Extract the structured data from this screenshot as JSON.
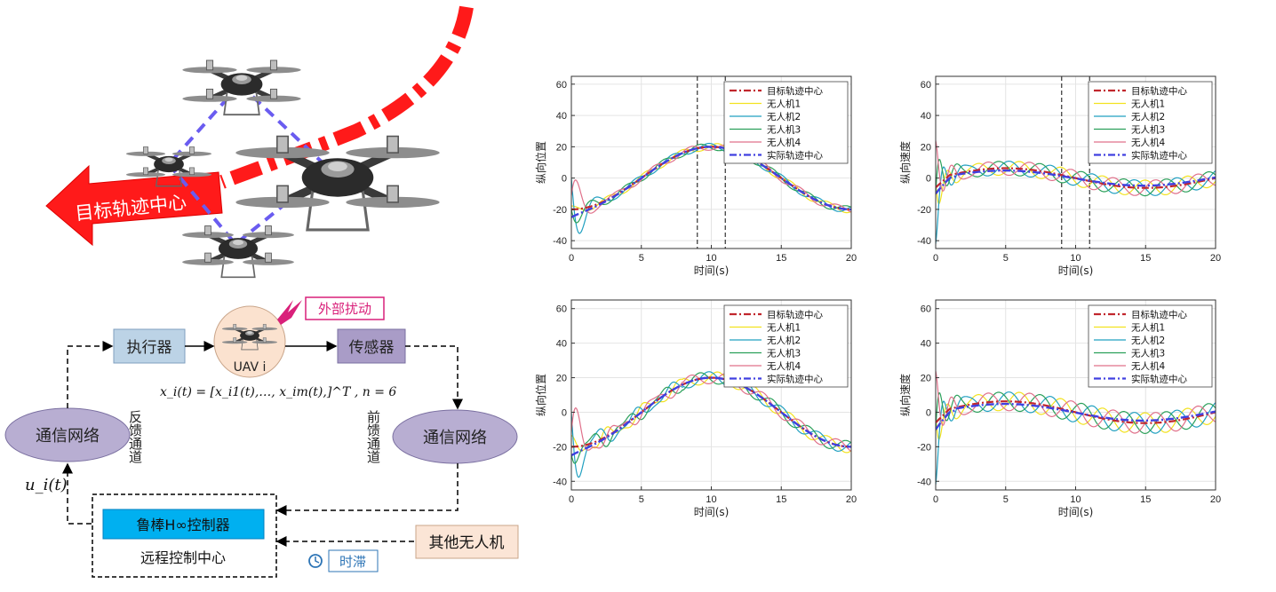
{
  "illustration": {
    "target_arrow_label": "目标轨迹中心",
    "disturbance_label": "外部扰动",
    "actuator_label": "执行器",
    "sensor_label": "传感器",
    "uav_label": "UAV i",
    "state_formula": "x_i(t) = [x_i1(t),…, x_im(t),]^T , n = 6",
    "network_left_label": "通信网络",
    "network_right_label": "通信网络",
    "feedback_channel": "反馈通道",
    "forward_channel": "前馈通道",
    "control_signal": "u_i(t)",
    "controller_label": "鲁棒H∞控制器",
    "remote_center_label": "远程控制中心",
    "other_uav_label": "其他无人机",
    "delay_label": "时滞"
  },
  "colors": {
    "target": "#c1272d",
    "uav1": "#f2e21f",
    "uav2": "#21a0c0",
    "uav3": "#2ba05a",
    "uav4": "#e0708a",
    "actual": "#4040e0",
    "arrow_red": "#ff1a1a",
    "actuator_fill": "#bcd3e6",
    "sensor_fill": "#a99cc7",
    "network_fill": "#b8aed2",
    "controller_fill": "#00b0f0",
    "other_fill": "#fbe5d6"
  },
  "chart_data": [
    {
      "type": "line",
      "ylabel": "纵向位置",
      "xlabel": "时间(s)",
      "xlim": [
        0,
        20
      ],
      "ylim": [
        -45,
        65
      ],
      "xticks": [
        0,
        5,
        10,
        15,
        20
      ],
      "yticks": [
        60,
        40,
        20,
        0,
        -20,
        -40
      ],
      "grid": true,
      "legend_position": "top-right",
      "vlines": [
        9,
        11
      ],
      "legend": [
        "目标轨迹中心",
        "无人机1",
        "无人机2",
        "无人机3",
        "无人机4",
        "实际轨迹中心"
      ],
      "kind": "position",
      "variant": 1
    },
    {
      "type": "line",
      "ylabel": "纵向速度",
      "xlabel": "时间(s)",
      "xlim": [
        0,
        20
      ],
      "ylim": [
        -45,
        65
      ],
      "xticks": [
        0,
        5,
        10,
        15,
        20
      ],
      "yticks": [
        60,
        40,
        20,
        0,
        -20,
        -40
      ],
      "grid": true,
      "legend_position": "top-right",
      "vlines": [
        9,
        11
      ],
      "legend": [
        "目标轨迹中心",
        "无人机1",
        "无人机2",
        "无人机3",
        "无人机4",
        "实际轨迹中心"
      ],
      "kind": "velocity",
      "variant": 1
    },
    {
      "type": "line",
      "ylabel": "纵向位置",
      "xlabel": "时间(s)",
      "xlim": [
        0,
        20
      ],
      "ylim": [
        -45,
        65
      ],
      "xticks": [
        0,
        5,
        10,
        15,
        20
      ],
      "yticks": [
        60,
        40,
        20,
        0,
        -20,
        -40
      ],
      "grid": true,
      "legend_position": "top-right",
      "vlines": [],
      "legend": [
        "目标轨迹中心",
        "无人机1",
        "无人机2",
        "无人机3",
        "无人机4",
        "实际轨迹中心"
      ],
      "kind": "position",
      "variant": 2
    },
    {
      "type": "line",
      "ylabel": "纵向速度",
      "xlabel": "时间(s)",
      "xlim": [
        0,
        20
      ],
      "ylim": [
        -45,
        65
      ],
      "xticks": [
        0,
        5,
        10,
        15,
        20
      ],
      "yticks": [
        60,
        40,
        20,
        0,
        -20,
        -40
      ],
      "grid": true,
      "legend_position": "top-right",
      "vlines": [],
      "legend": [
        "目标轨迹中心",
        "无人机1",
        "无人机2",
        "无人机3",
        "无人机4",
        "实际轨迹中心"
      ],
      "kind": "velocity",
      "variant": 2
    }
  ]
}
